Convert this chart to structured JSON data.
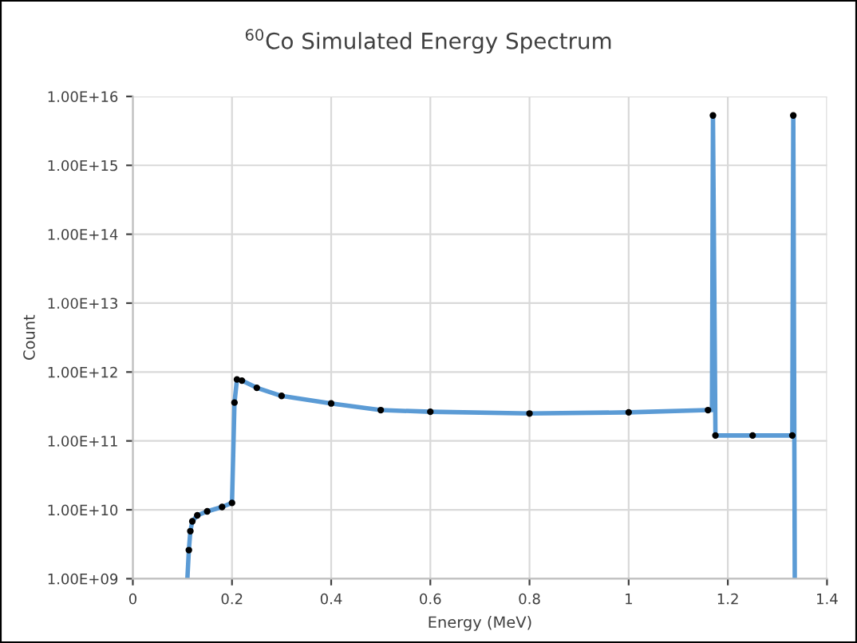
{
  "chart_data": {
    "type": "line",
    "title": "$^{60}$Co Simulated Energy Spectrum",
    "xlabel": "Energy (MeV)",
    "ylabel": "Count",
    "log": "y",
    "grid": true,
    "xlim": [
      0,
      1.4
    ],
    "xticks": [
      0,
      0.2,
      0.4,
      0.6,
      0.8,
      1,
      1.2,
      1.4
    ],
    "ylim": [
      1000000000.0,
      1e+16
    ],
    "yticks": [
      {
        "value": 1000000000.0,
        "label": "1.00E+09"
      },
      {
        "value": 10000000000.0,
        "label": "1.00E+10"
      },
      {
        "value": 100000000000.0,
        "label": "1.00E+11"
      },
      {
        "value": 1000000000000.0,
        "label": "1.00E+12"
      },
      {
        "value": 10000000000000.0,
        "label": "1.00E+13"
      },
      {
        "value": 100000000000000.0,
        "label": "1.00E+14"
      },
      {
        "value": 1000000000000000.0,
        "label": "1.00E+15"
      },
      {
        "value": 1e+16,
        "label": "1.00E+16"
      }
    ],
    "series": [
      {
        "color": "#5b9bd5",
        "marker": "none",
        "x": [
          0.11,
          0.113,
          0.116,
          0.12,
          0.13,
          0.15,
          0.18,
          0.2,
          0.205,
          0.21,
          0.22,
          0.25,
          0.3,
          0.4,
          0.5,
          0.6,
          0.8,
          1.0,
          1.16,
          1.168,
          1.17,
          1.175,
          1.25,
          1.33,
          1.332,
          1.335
        ],
        "values": [
          1000000000.0,
          2600000000.0,
          4900000000.0,
          6800000000.0,
          8300000000.0,
          9500000000.0,
          11000000000.0,
          12600000000.0,
          360000000000.0,
          780000000000.0,
          750000000000.0,
          590000000000.0,
          450000000000.0,
          350000000000.0,
          280000000000.0,
          265000000000.0,
          250000000000.0,
          260000000000.0,
          280000000000.0,
          280000000000.0,
          5300000000000000.0,
          120000000000.0,
          120000000000.0,
          120000000000.0,
          5300000000000000.0,
          1000000000.0
        ]
      },
      {
        "type": "scatter",
        "color": "#000000",
        "marker": "circle",
        "x": [
          0.113,
          0.116,
          0.12,
          0.13,
          0.15,
          0.18,
          0.2,
          0.205,
          0.21,
          0.22,
          0.25,
          0.3,
          0.4,
          0.5,
          0.6,
          0.8,
          1.0,
          1.16,
          1.17,
          1.175,
          1.25,
          1.33,
          1.332
        ],
        "values": [
          2600000000.0,
          4900000000.0,
          6800000000.0,
          8300000000.0,
          9500000000.0,
          11000000000.0,
          12600000000.0,
          360000000000.0,
          780000000000.0,
          750000000000.0,
          590000000000.0,
          450000000000.0,
          350000000000.0,
          280000000000.0,
          265000000000.0,
          250000000000.0,
          260000000000.0,
          280000000000.0,
          5300000000000000.0,
          120000000000.0,
          120000000000.0,
          120000000000.0,
          5300000000000000.0
        ]
      }
    ]
  }
}
